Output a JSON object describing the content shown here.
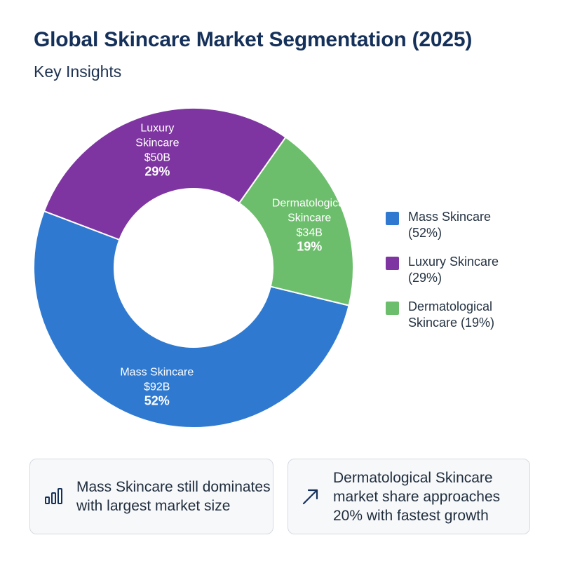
{
  "header": {
    "title": "Global Skincare Market Segmentation (2025)",
    "subtitle": "Key Insights"
  },
  "chart_data": {
    "type": "pie",
    "variant": "donut",
    "title": "Global Skincare Market Segmentation (2025)",
    "legend_position": "right",
    "categories": [
      "Mass Skincare",
      "Luxury Skincare",
      "Dermatological Skincare"
    ],
    "values": [
      52,
      29,
      19
    ],
    "value_unit": "%",
    "market_size_labels": [
      "$92B",
      "$50B",
      "$34B"
    ],
    "market_size_billions": [
      92,
      50,
      34
    ],
    "colors": [
      "#2f7ad0",
      "#7e35a1",
      "#6cbe6c"
    ],
    "slice_labels": [
      {
        "name_lines": [
          "Mass Skincare"
        ],
        "value": "$92B",
        "pct": "52%"
      },
      {
        "name_lines": [
          "Luxury",
          "Skincare"
        ],
        "value": "$50B",
        "pct": "29%"
      },
      {
        "name_lines": [
          "Dermatological",
          "Skincare"
        ],
        "value": "$34B",
        "pct": "19%"
      }
    ],
    "legend": [
      {
        "label": "Mass Skincare\n(52%)",
        "color": "#2f7ad0"
      },
      {
        "label": "Luxury Skincare\n(29%)",
        "color": "#7e35a1"
      },
      {
        "label": "Dermatological\nSkincare (19%)",
        "color": "#6cbe6c"
      }
    ]
  },
  "insights": [
    {
      "icon": "bar-chart-icon",
      "text": "Mass Skincare still dominates with largest market size"
    },
    {
      "icon": "trend-arrow-icon",
      "text": "Dermatological Skincare market share approaches 20% with fastest growth"
    }
  ]
}
